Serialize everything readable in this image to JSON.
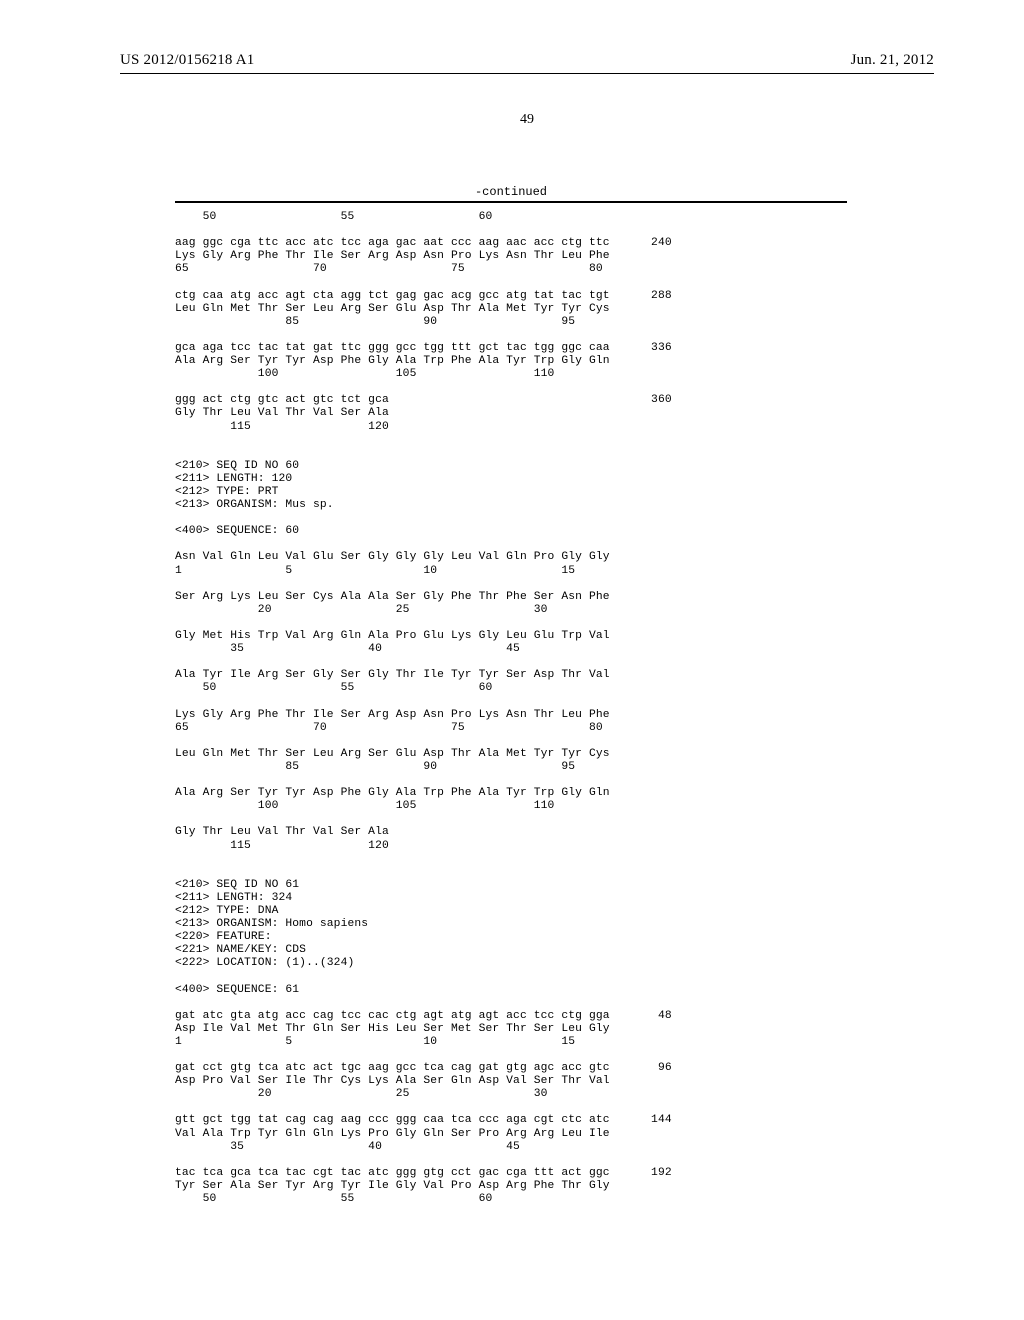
{
  "header": {
    "pub_no": "US 2012/0156218 A1",
    "pub_date": "Jun. 21, 2012"
  },
  "page_number": "49",
  "continued_label": "-continued",
  "sequence_text": "    50                  55                  60\n\naag ggc cga ttc acc atc tcc aga gac aat ccc aag aac acc ctg ttc      240\nLys Gly Arg Phe Thr Ile Ser Arg Asp Asn Pro Lys Asn Thr Leu Phe\n65                  70                  75                  80\n\nctg caa atg acc agt cta agg tct gag gac acg gcc atg tat tac tgt      288\nLeu Gln Met Thr Ser Leu Arg Ser Glu Asp Thr Ala Met Tyr Tyr Cys\n                85                  90                  95\n\ngca aga tcc tac tat gat ttc ggg gcc tgg ttt gct tac tgg ggc caa      336\nAla Arg Ser Tyr Tyr Asp Phe Gly Ala Trp Phe Ala Tyr Trp Gly Gln\n            100                 105                 110\n\nggg act ctg gtc act gtc tct gca                                      360\nGly Thr Leu Val Thr Val Ser Ala\n        115                 120\n\n\n<210> SEQ ID NO 60\n<211> LENGTH: 120\n<212> TYPE: PRT\n<213> ORGANISM: Mus sp.\n\n<400> SEQUENCE: 60\n\nAsn Val Gln Leu Val Glu Ser Gly Gly Gly Leu Val Gln Pro Gly Gly\n1               5                   10                  15\n\nSer Arg Lys Leu Ser Cys Ala Ala Ser Gly Phe Thr Phe Ser Asn Phe\n            20                  25                  30\n\nGly Met His Trp Val Arg Gln Ala Pro Glu Lys Gly Leu Glu Trp Val\n        35                  40                  45\n\nAla Tyr Ile Arg Ser Gly Ser Gly Thr Ile Tyr Tyr Ser Asp Thr Val\n    50                  55                  60\n\nLys Gly Arg Phe Thr Ile Ser Arg Asp Asn Pro Lys Asn Thr Leu Phe\n65                  70                  75                  80\n\nLeu Gln Met Thr Ser Leu Arg Ser Glu Asp Thr Ala Met Tyr Tyr Cys\n                85                  90                  95\n\nAla Arg Ser Tyr Tyr Asp Phe Gly Ala Trp Phe Ala Tyr Trp Gly Gln\n            100                 105                 110\n\nGly Thr Leu Val Thr Val Ser Ala\n        115                 120\n\n\n<210> SEQ ID NO 61\n<211> LENGTH: 324\n<212> TYPE: DNA\n<213> ORGANISM: Homo sapiens\n<220> FEATURE:\n<221> NAME/KEY: CDS\n<222> LOCATION: (1)..(324)\n\n<400> SEQUENCE: 61\n\ngat atc gta atg acc cag tcc cac ctg agt atg agt acc tcc ctg gga       48\nAsp Ile Val Met Thr Gln Ser His Leu Ser Met Ser Thr Ser Leu Gly\n1               5                   10                  15\n\ngat cct gtg tca atc act tgc aag gcc tca cag gat gtg agc acc gtc       96\nAsp Pro Val Ser Ile Thr Cys Lys Ala Ser Gln Asp Val Ser Thr Val\n            20                  25                  30\n\ngtt gct tgg tat cag cag aag ccc ggg caa tca ccc aga cgt ctc atc      144\nVal Ala Trp Tyr Gln Gln Lys Pro Gly Gln Ser Pro Arg Arg Leu Ile\n        35                  40                  45\n\ntac tca gca tca tac cgt tac atc ggg gtg cct gac cga ttt act ggc      192\nTyr Ser Ala Ser Tyr Arg Tyr Ile Gly Val Pro Asp Arg Phe Thr Gly\n    50                  55                  60"
}
